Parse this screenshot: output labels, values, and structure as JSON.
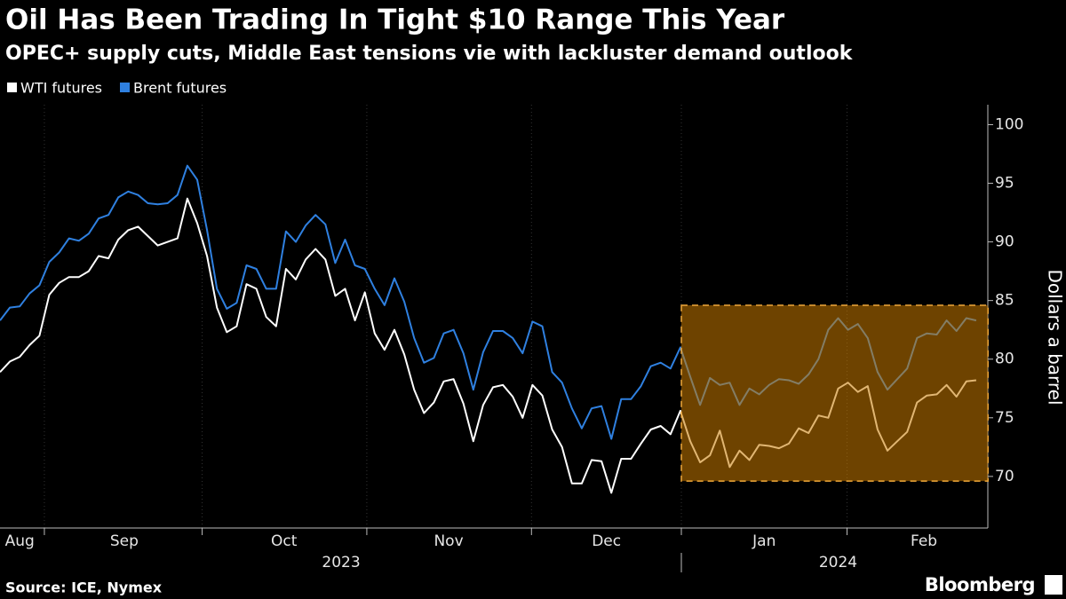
{
  "chart_data": {
    "type": "line",
    "title": "Oil Has Been Trading In Tight $10 Range This Year",
    "subtitle": "OPEC+ supply cuts, Middle East tensions vie with lackluster demand outlook",
    "y_label": "Dollars a barrel",
    "source": "Source: ICE, Nymex",
    "brand": "Bloomberg",
    "categories": [
      null,
      null,
      null,
      null,
      null,
      null,
      null,
      null,
      null,
      null,
      null,
      null,
      null,
      null,
      null,
      null,
      null,
      null,
      null,
      null,
      null,
      null,
      null,
      null,
      null,
      null,
      null,
      null,
      null,
      null,
      null,
      null,
      null,
      null,
      null,
      null,
      null,
      null,
      null,
      null,
      null,
      null,
      null,
      null,
      null,
      null,
      null,
      null,
      null,
      null,
      null,
      null,
      null,
      null,
      null,
      null,
      null,
      null,
      null,
      null,
      null,
      null,
      null,
      null,
      null,
      null,
      null,
      null,
      null,
      null,
      null,
      null,
      null,
      null,
      null,
      null,
      null,
      null,
      null,
      null,
      null,
      null,
      null,
      null,
      null,
      null,
      null,
      null,
      null,
      null,
      null,
      null,
      null,
      null,
      null,
      null,
      null,
      null,
      null,
      null
    ],
    "series": [
      {
        "name": "WTI futures",
        "color": "#ffffff",
        "values": [
          78.9,
          79.8,
          80.2,
          81.2,
          82.0,
          85.5,
          86.5,
          87.0,
          87.0,
          87.5,
          88.8,
          88.6,
          90.2,
          91.0,
          91.3,
          90.5,
          89.7,
          90.0,
          90.3,
          93.7,
          91.6,
          88.8,
          84.4,
          82.3,
          82.8,
          86.4,
          86.0,
          83.6,
          82.8,
          87.7,
          86.8,
          88.5,
          89.4,
          88.5,
          85.4,
          86.0,
          83.3,
          85.7,
          82.2,
          80.8,
          82.5,
          80.4,
          77.4,
          75.4,
          76.3,
          78.1,
          78.3,
          76.2,
          73.0,
          76.1,
          77.6,
          77.8,
          76.8,
          75.0,
          77.8,
          76.9,
          74.0,
          72.5,
          69.4,
          69.4,
          71.4,
          71.3,
          68.6,
          71.5,
          71.5,
          72.8,
          74.0,
          74.3,
          73.6,
          75.6,
          73.0,
          71.2,
          71.8,
          73.9,
          70.8,
          72.2,
          71.4,
          72.7,
          72.6,
          72.4,
          72.8,
          74.1,
          73.7,
          75.2,
          75.0,
          77.5,
          78.0,
          77.2,
          77.7,
          74.0,
          72.2,
          73.0,
          73.8,
          76.3,
          76.9,
          77.0,
          77.8,
          76.8,
          78.1,
          78.2
        ]
      },
      {
        "name": "Brent futures",
        "color": "#2f80e0",
        "values": [
          83.3,
          84.4,
          84.5,
          85.6,
          86.3,
          88.3,
          89.1,
          90.3,
          90.1,
          90.7,
          92.0,
          92.3,
          93.8,
          94.3,
          94.0,
          93.3,
          93.2,
          93.3,
          94.0,
          96.5,
          95.3,
          91.0,
          86.0,
          84.3,
          84.8,
          88.0,
          87.7,
          86.0,
          86.0,
          90.9,
          90.0,
          91.4,
          92.3,
          91.5,
          88.2,
          90.2,
          88.0,
          87.7,
          86.0,
          84.6,
          86.9,
          84.9,
          81.8,
          79.7,
          80.1,
          82.2,
          82.5,
          80.5,
          77.4,
          80.6,
          82.4,
          82.4,
          81.8,
          80.5,
          83.2,
          82.8,
          78.9,
          78.0,
          75.8,
          74.1,
          75.8,
          76.0,
          73.2,
          76.6,
          76.6,
          77.7,
          79.4,
          79.7,
          79.2,
          81.0,
          78.5,
          76.1,
          78.4,
          77.8,
          78.0,
          76.1,
          77.5,
          77.0,
          77.8,
          78.3,
          78.2,
          77.9,
          78.7,
          80.0,
          82.5,
          83.5,
          82.5,
          83.0,
          81.8,
          78.9,
          77.4,
          78.3,
          79.2,
          81.8,
          82.2,
          82.1,
          83.3,
          82.4,
          83.5,
          83.3
        ]
      }
    ],
    "xticks": [
      {
        "value": 2.0,
        "label": "Aug"
      },
      {
        "value": 12.6,
        "label": "Sep"
      },
      {
        "value": 28.8,
        "label": "Oct"
      },
      {
        "value": 45.5,
        "label": "Nov"
      },
      {
        "value": 61.5,
        "label": "Dec"
      },
      {
        "value": 77.5,
        "label": "Jan"
      },
      {
        "value": 93.7,
        "label": "Feb"
      }
    ],
    "month_boundaries": [
      4.5,
      20.5,
      37.2,
      53.9,
      69.1,
      85.9
    ],
    "years": [
      {
        "value": 34.6,
        "label": "2023"
      },
      {
        "value": 85.0,
        "label": "2024"
      }
    ],
    "year_boundaries": [
      69.1
    ],
    "highlight": {
      "x": [
        69.1,
        100.2
      ],
      "y": [
        69.6,
        84.6
      ],
      "color": "#c87a00"
    },
    "ylim": [
      65.6,
      101.7
    ],
    "yticks": [
      70,
      75,
      80,
      85,
      90,
      95,
      100
    ],
    "y_axis_side": "right"
  }
}
